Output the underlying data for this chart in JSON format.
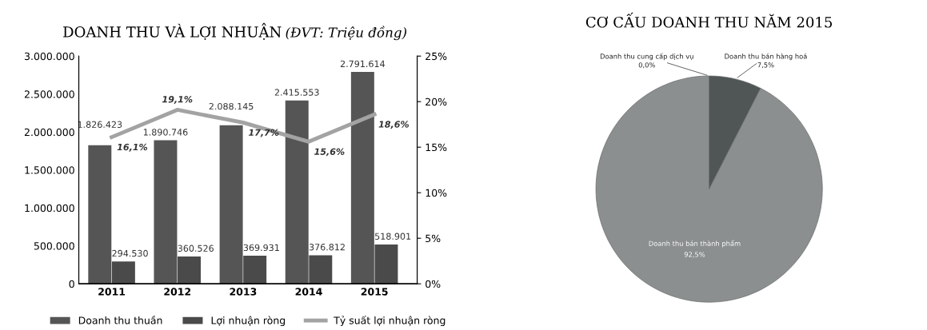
{
  "chart_data": [
    {
      "type": "bar",
      "title": "DOANH THU VÀ LỢI NHUẬN",
      "subtitle": "(ĐVT: Triệu đồng)",
      "categories": [
        "2011",
        "2012",
        "2013",
        "2014",
        "2015"
      ],
      "series": [
        {
          "name": "Doanh thu thuần",
          "color": "#555555",
          "values": [
            1826423,
            1890746,
            2088145,
            2415553,
            2791614
          ],
          "value_labels": [
            "1.826.423",
            "1.890.746",
            "2.088.145",
            "2.415.553",
            "2.791.614"
          ]
        },
        {
          "name": "Lợi nhuận ròng",
          "color": "#4a4a4a",
          "values": [
            294530,
            360526,
            369931,
            376812,
            518901
          ],
          "value_labels": [
            "294.530",
            "360.526",
            "369.931",
            "376.812",
            "518.901"
          ]
        },
        {
          "name": "Tỷ suất lợi nhuận ròng",
          "type": "line",
          "axis": "y2",
          "color": "#a3a3a3",
          "values": [
            16.1,
            19.1,
            17.7,
            15.6,
            18.6
          ],
          "value_labels": [
            "16,1%",
            "19,1%",
            "17,7%",
            "15,6%",
            "18,6%"
          ]
        }
      ],
      "ylim": [
        0,
        3000000
      ],
      "yticks": [
        {
          "value": 0,
          "label": "0"
        },
        {
          "value": 500000,
          "label": "500.000"
        },
        {
          "value": 1000000,
          "label": "1.000.000"
        },
        {
          "value": 1500000,
          "label": "1.500.000"
        },
        {
          "value": 2000000,
          "label": "2.000.000"
        },
        {
          "value": 2500000,
          "label": "2.500.000"
        },
        {
          "value": 3000000,
          "label": "3.000.000"
        }
      ],
      "y2lim": [
        0,
        25
      ],
      "y2ticks": [
        {
          "value": 0,
          "label": "0%"
        },
        {
          "value": 5,
          "label": "5%"
        },
        {
          "value": 10,
          "label": "10%"
        },
        {
          "value": 15,
          "label": "15%"
        },
        {
          "value": 20,
          "label": "20%"
        },
        {
          "value": 25,
          "label": "25%"
        }
      ],
      "grid": false,
      "legend": "bottom",
      "marker": "none",
      "line_style": "solid"
    },
    {
      "type": "pie",
      "title": "CƠ CẤU DOANH THU NĂM 2015",
      "categories": [
        "Doanh thu cung cấp dịch vụ",
        "Doanh thu bán hàng hoá",
        "Doanh thu bán thành phẩm"
      ],
      "values": [
        0.0,
        7.5,
        92.5
      ],
      "colors": [
        "#c0c0c0",
        "#505555",
        "#8b8f8f"
      ],
      "value_labels": [
        "0,0%",
        "7,5%",
        "92,5%"
      ],
      "legend": false
    }
  ]
}
